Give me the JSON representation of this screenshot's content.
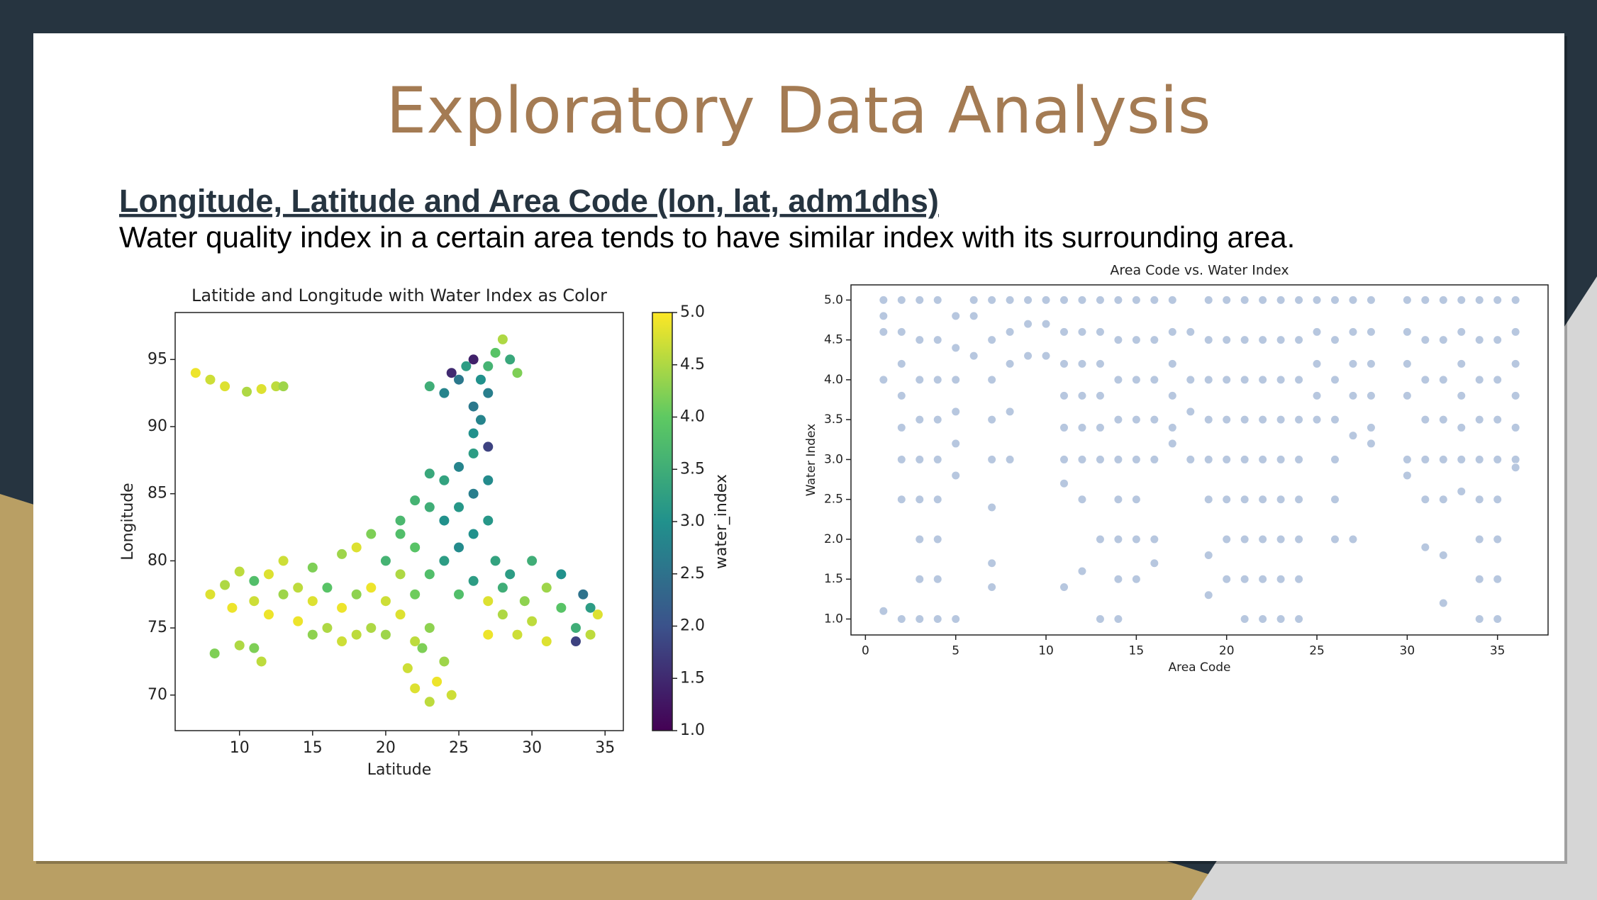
{
  "header": {
    "title": "Exploratory Data Analysis"
  },
  "section": {
    "heading": "Longitude, Latitude and Area Code (lon, lat, adm1dhs)",
    "text": "Water quality index in a certain area tends to have similar index with its surrounding area."
  },
  "chart_data": [
    {
      "type": "scatter",
      "title": "Latitide and Longitude with Water Index as Color",
      "x_label": "Latitude",
      "y_label": "Longitude",
      "xlim": [
        5.6,
        36.25
      ],
      "ylim": [
        67.35,
        98.5
      ],
      "xticks": [
        10,
        15,
        20,
        25,
        30,
        35
      ],
      "yticks": [
        70,
        75,
        80,
        85,
        90,
        95
      ],
      "colormap": "viridis",
      "colorbar_label": "water_index",
      "clim": [
        1,
        5
      ],
      "cticks": [
        {
          "value": 1,
          "label": "1.0"
        },
        {
          "value": 1.5,
          "label": "1.5"
        },
        {
          "value": 2,
          "label": "2.0"
        },
        {
          "value": 2.5,
          "label": "2.5"
        },
        {
          "value": 3,
          "label": "3.0"
        },
        {
          "value": 3.5,
          "label": "3.5"
        },
        {
          "value": 4,
          "label": "4.0"
        },
        {
          "value": 4.5,
          "label": "4.5"
        },
        {
          "value": 5,
          "label": "5.0"
        }
      ],
      "x": [
        7,
        8,
        9,
        10.5,
        11.5,
        12.5,
        13,
        8.3,
        10,
        11,
        11.5,
        8,
        9,
        9.5,
        10,
        11,
        11,
        12,
        12,
        13,
        13,
        14,
        14,
        15,
        15,
        15,
        16,
        16,
        17,
        17,
        17,
        18,
        18,
        18,
        19,
        19,
        19,
        20,
        20,
        20,
        21,
        21,
        21,
        22,
        22,
        22,
        23,
        23,
        23,
        21.5,
        22,
        23,
        23.5,
        24,
        22.5,
        24.5,
        24,
        24,
        24,
        25,
        25,
        25,
        26,
        26,
        26,
        27,
        27,
        23,
        22,
        21,
        27.5,
        28,
        26,
        25,
        26,
        26.5,
        26,
        27,
        23,
        24,
        24.5,
        25,
        25.5,
        26,
        26.5,
        27,
        27.5,
        28,
        28.5,
        29,
        27,
        28,
        28.5,
        29,
        29.5,
        30,
        30,
        31,
        31,
        32,
        32,
        33,
        33,
        34,
        34,
        34.5,
        33.5,
        27,
        27
      ],
      "values": [
        94,
        93.5,
        93,
        92.6,
        92.8,
        93,
        93,
        73.1,
        73.7,
        73.5,
        72.5,
        77.5,
        78.2,
        76.5,
        79.2,
        77,
        78.5,
        76,
        79,
        77.5,
        80,
        75.5,
        78,
        74.5,
        77,
        79.5,
        75,
        78,
        74,
        76.5,
        80.5,
        74.5,
        77.5,
        81,
        75,
        78,
        82,
        74.5,
        77,
        80,
        76,
        79,
        83,
        74,
        77.5,
        81,
        75,
        79,
        84,
        72,
        70.5,
        69.5,
        71,
        72.5,
        73.5,
        70,
        80,
        83,
        86,
        81,
        84,
        87,
        82,
        85,
        88,
        83,
        86,
        86.5,
        84.5,
        82,
        80,
        78,
        78.5,
        77.5,
        89.5,
        90.5,
        91.5,
        88.5,
        93,
        92.5,
        94,
        93.5,
        94.5,
        95,
        93.5,
        94.5,
        95.5,
        96.5,
        95,
        94,
        92.5,
        76,
        79,
        74.5,
        77,
        80,
        75.5,
        78,
        74,
        76.5,
        79,
        75,
        74,
        76.5,
        74.5,
        76,
        77.5,
        77,
        74.5
      ],
      "color_values": [
        4.9,
        4.7,
        4.8,
        4.5,
        4.8,
        4.6,
        4.4,
        4.2,
        4.5,
        4.2,
        4.6,
        4.8,
        4.5,
        4.9,
        4.6,
        4.7,
        3.8,
        4.9,
        4.8,
        4.4,
        4.7,
        4.9,
        4.6,
        4.3,
        4.8,
        4.2,
        4.5,
        3.9,
        4.7,
        4.9,
        4.4,
        4.6,
        4.3,
        4.8,
        4.5,
        4.9,
        4.2,
        4.4,
        4.7,
        3.6,
        4.8,
        4.5,
        3.7,
        4.6,
        4.1,
        3.9,
        4.3,
        3.8,
        3.5,
        4.7,
        4.8,
        4.6,
        4.9,
        4.4,
        4.2,
        4.7,
        3.2,
        3.0,
        3.3,
        2.9,
        3.1,
        2.8,
        3.0,
        2.7,
        3.2,
        3.1,
        2.9,
        3.4,
        3.6,
        3.8,
        3.3,
        3.5,
        3.2,
        3.8,
        3.0,
        2.8,
        2.6,
        1.8,
        3.5,
        2.8,
        1.5,
        2.6,
        3.2,
        1.4,
        3.0,
        3.6,
        3.9,
        4.5,
        3.4,
        4.2,
        2.7,
        4.5,
        3.2,
        4.7,
        4.3,
        3.5,
        4.6,
        4.4,
        4.8,
        3.9,
        3.0,
        3.5,
        1.8,
        3.2,
        4.6,
        4.8,
        2.5,
        4.8,
        4.9
      ]
    },
    {
      "type": "scatter",
      "title": "Area Code vs. Water Index",
      "x_label": "Area Code",
      "y_label": "Water Index",
      "xlim": [
        -0.8,
        37.8
      ],
      "ylim": [
        0.8,
        5.19
      ],
      "xticks": [
        0,
        5,
        10,
        15,
        20,
        25,
        30,
        35
      ],
      "yticks": [
        {
          "value": 1,
          "label": "1.0"
        },
        {
          "value": 1.5,
          "label": "1.5"
        },
        {
          "value": 2,
          "label": "2.0"
        },
        {
          "value": 2.5,
          "label": "2.5"
        },
        {
          "value": 3,
          "label": "3.0"
        },
        {
          "value": 3.5,
          "label": "3.5"
        },
        {
          "value": 4,
          "label": "4.0"
        },
        {
          "value": 4.5,
          "label": "4.5"
        },
        {
          "value": 5,
          "label": "5.0"
        }
      ],
      "color": "#4c72b0",
      "alpha": 0.4,
      "x": [
        1,
        1,
        1,
        1,
        1,
        2,
        2,
        2,
        2,
        2,
        2,
        2,
        2,
        3,
        3,
        3,
        3,
        3,
        3,
        3,
        3,
        3,
        4,
        4,
        4,
        4,
        4,
        4,
        4,
        4,
        4,
        5,
        5,
        5,
        5,
        5,
        5,
        5,
        6,
        6,
        6,
        7,
        7,
        7,
        7,
        7,
        7,
        7,
        7,
        8,
        8,
        8,
        8,
        8,
        9,
        9,
        9,
        10,
        10,
        10,
        11,
        11,
        11,
        11,
        11,
        11,
        11,
        11,
        12,
        12,
        12,
        12,
        12,
        12,
        12,
        12,
        13,
        13,
        13,
        13,
        13,
        13,
        13,
        13,
        14,
        14,
        14,
        14,
        14,
        14,
        14,
        14,
        14,
        15,
        15,
        15,
        15,
        15,
        15,
        15,
        15,
        16,
        16,
        16,
        16,
        16,
        16,
        16,
        17,
        17,
        17,
        17,
        17,
        17,
        18,
        18,
        18,
        18,
        19,
        19,
        19,
        19,
        19,
        19,
        19,
        19,
        20,
        20,
        20,
        20,
        20,
        20,
        20,
        20,
        21,
        21,
        21,
        21,
        21,
        21,
        21,
        21,
        21,
        22,
        22,
        22,
        22,
        22,
        22,
        22,
        22,
        22,
        23,
        23,
        23,
        23,
        23,
        23,
        23,
        23,
        23,
        24,
        24,
        24,
        24,
        24,
        24,
        24,
        24,
        24,
        25,
        25,
        25,
        25,
        25,
        26,
        26,
        26,
        26,
        26,
        26,
        26,
        27,
        27,
        27,
        27,
        27,
        27,
        28,
        28,
        28,
        28,
        28,
        28,
        30,
        30,
        30,
        30,
        30,
        30,
        31,
        31,
        31,
        31,
        31,
        31,
        31,
        32,
        32,
        32,
        32,
        32,
        32,
        32,
        32,
        33,
        33,
        33,
        33,
        33,
        33,
        33,
        34,
        34,
        34,
        34,
        34,
        34,
        34,
        34,
        34,
        35,
        35,
        35,
        35,
        35,
        35,
        35,
        35,
        35,
        36,
        36,
        36,
        36,
        36,
        36,
        36
      ],
      "values": [
        5,
        4.8,
        4.6,
        4.0,
        1.1,
        5,
        4.6,
        4.2,
        3.8,
        3.4,
        3.0,
        2.5,
        1.0,
        5,
        4.5,
        4.0,
        3.5,
        3.0,
        2.5,
        2.0,
        1.5,
        1.0,
        5,
        4.5,
        4.0,
        3.5,
        3.0,
        2.5,
        2.0,
        1.5,
        1.0,
        4.8,
        4.4,
        4.0,
        3.6,
        3.2,
        2.8,
        1.0,
        5,
        4.8,
        4.3,
        5,
        4.5,
        4.0,
        3.5,
        3.0,
        2.4,
        1.7,
        1.4,
        5,
        4.6,
        4.2,
        3.6,
        3.0,
        5,
        4.7,
        4.3,
        5,
        4.7,
        4.3,
        5,
        4.6,
        4.2,
        3.8,
        3.4,
        3.0,
        2.7,
        1.4,
        5,
        4.6,
        4.2,
        3.8,
        3.4,
        3.0,
        2.5,
        1.6,
        5,
        4.6,
        4.2,
        3.8,
        3.4,
        3.0,
        2.0,
        1.0,
        5,
        4.5,
        4.0,
        3.5,
        3.0,
        2.5,
        2.0,
        1.5,
        1.0,
        5,
        4.5,
        4.0,
        3.5,
        3.0,
        2.5,
        2.0,
        1.5,
        5,
        4.5,
        4.0,
        3.5,
        3.0,
        2.0,
        1.7,
        5,
        4.6,
        4.2,
        3.8,
        3.4,
        3.2,
        4.6,
        4.0,
        3.6,
        3.0,
        5,
        4.5,
        4.0,
        3.5,
        3.0,
        2.5,
        1.8,
        1.3,
        5,
        4.5,
        4.0,
        3.5,
        3.0,
        2.5,
        2.0,
        1.5,
        5,
        4.5,
        4.0,
        3.5,
        3.0,
        2.5,
        2.0,
        1.5,
        1.0,
        5,
        4.5,
        4.0,
        3.5,
        3.0,
        2.5,
        2.0,
        1.5,
        1.0,
        5,
        4.5,
        4.0,
        3.5,
        3.0,
        2.5,
        2.0,
        1.5,
        1.0,
        5,
        4.5,
        4.0,
        3.5,
        3.0,
        2.5,
        2.0,
        1.5,
        1.0,
        5,
        4.6,
        4.2,
        3.8,
        3.5,
        5,
        4.5,
        4.0,
        3.5,
        3.0,
        2.5,
        2.0,
        5,
        4.6,
        4.2,
        3.8,
        3.3,
        2.0,
        5,
        4.6,
        4.2,
        3.8,
        3.4,
        3.2,
        5,
        4.6,
        4.2,
        3.8,
        3.0,
        2.8,
        5,
        4.5,
        4.0,
        3.5,
        3.0,
        2.5,
        1.9,
        5,
        4.5,
        4.0,
        3.5,
        3.0,
        2.5,
        1.8,
        1.2,
        5,
        4.6,
        4.2,
        3.8,
        3.4,
        3.0,
        2.6,
        5,
        4.5,
        4.0,
        3.5,
        3.0,
        2.5,
        2.0,
        1.5,
        1.0,
        5,
        4.5,
        4.0,
        3.5,
        3.0,
        2.5,
        2.0,
        1.5,
        1.0,
        5,
        4.6,
        4.2,
        3.8,
        3.4,
        3.0,
        2.9
      ]
    }
  ]
}
